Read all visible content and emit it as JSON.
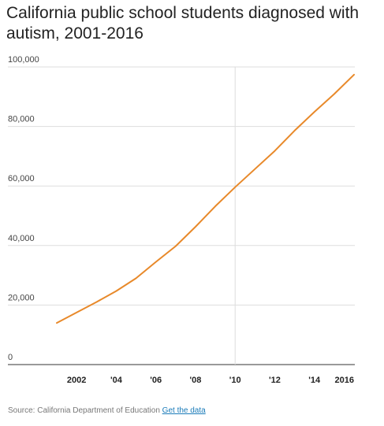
{
  "chart_data": {
    "type": "line",
    "title": "California public school students diagnosed with autism, 2001-2016",
    "x": [
      2001,
      2002,
      2003,
      2004,
      2005,
      2006,
      2007,
      2008,
      2009,
      2010,
      2011,
      2012,
      2013,
      2014,
      2015,
      2016
    ],
    "series": [
      {
        "values": [
          14000,
          17500,
          21000,
          24700,
          29000,
          34500,
          39800,
          46300,
          53200,
          59600,
          65700,
          71800,
          78600,
          84900,
          90900,
          97400
        ]
      }
    ],
    "ylim": [
      0,
      100000
    ],
    "xlim": [
      2001,
      2016
    ],
    "y_ticks": [
      0,
      20000,
      40000,
      60000,
      80000,
      100000
    ],
    "y_tick_labels": [
      "0",
      "20,000",
      "40,000",
      "60,000",
      "80,000",
      "100,000"
    ],
    "x_ticks": [
      2002,
      2004,
      2006,
      2008,
      2010,
      2012,
      2014,
      2016
    ],
    "x_tick_labels": [
      "2002",
      "'04",
      "'06",
      "'08",
      "'10",
      "'12",
      "'14",
      "2016"
    ],
    "highlight_x": 2010,
    "grid": true,
    "line_color": "#e8892a",
    "grid_color": "#dddddd",
    "xlabel": "",
    "ylabel": ""
  },
  "footer": {
    "source": "Source: California Department of Education",
    "link": "Get the data",
    "link_color": "#1a7bb9"
  }
}
